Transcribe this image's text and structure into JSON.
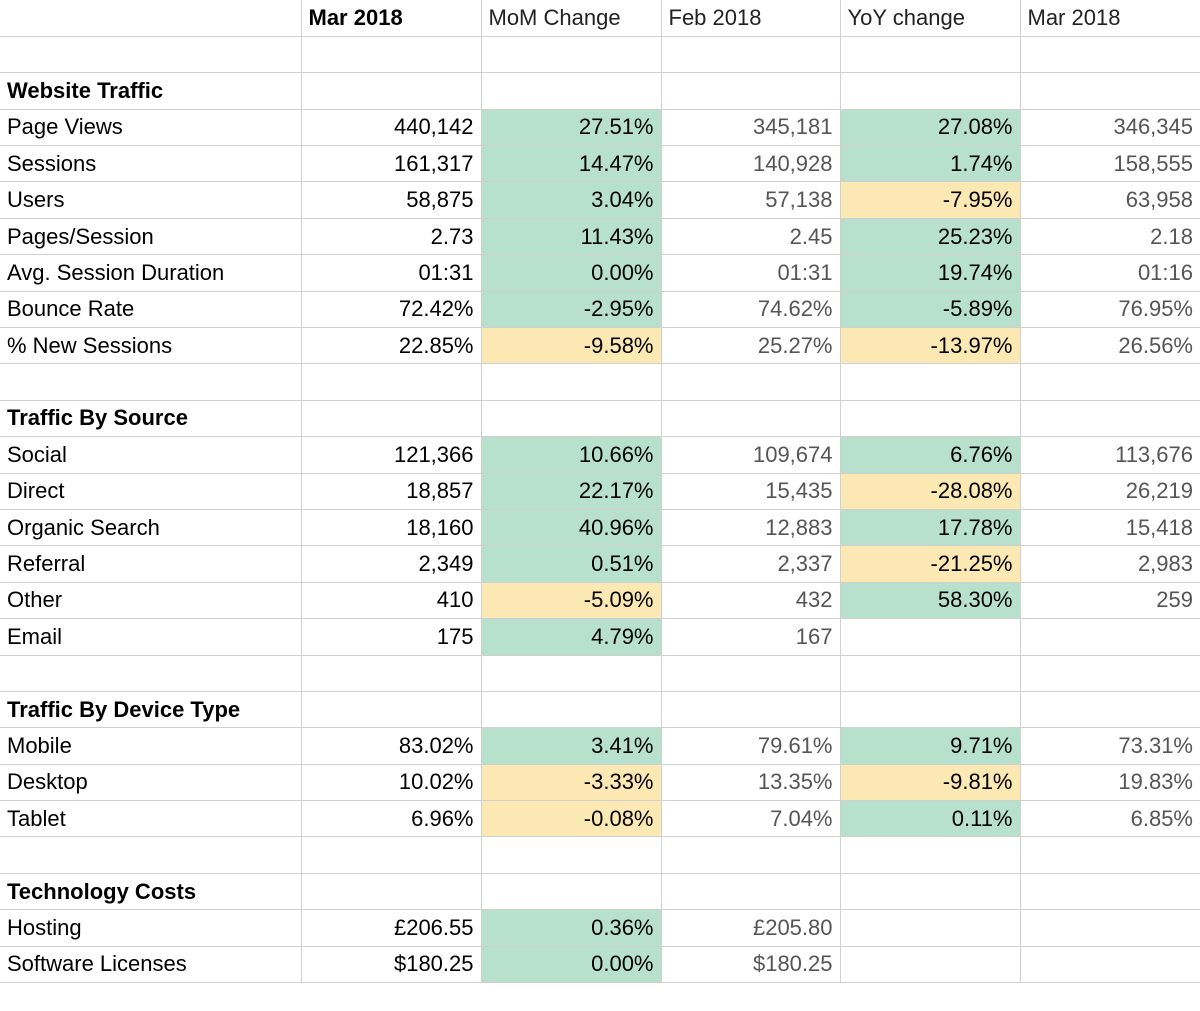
{
  "header": {
    "label": "",
    "columns": [
      "Mar 2018",
      "MoM Change",
      "Feb 2018",
      "YoY change",
      "Mar 2018"
    ]
  },
  "colors": {
    "positive_fill": "#b7e1cd",
    "negative_fill": "#fce8b2",
    "gridline": "#d0d0d0",
    "muted_text": "#555555"
  },
  "sections": [
    {
      "title": "Website Traffic",
      "rows": [
        {
          "label": "Page Views",
          "mar2018": "440,142",
          "mom": "27.51%",
          "mom_status": "pos",
          "feb2018": "345,181",
          "yoy": "27.08%",
          "yoy_status": "pos",
          "mar2017": "346,345"
        },
        {
          "label": "Sessions",
          "mar2018": "161,317",
          "mom": "14.47%",
          "mom_status": "pos",
          "feb2018": "140,928",
          "yoy": "1.74%",
          "yoy_status": "pos",
          "mar2017": "158,555"
        },
        {
          "label": "Users",
          "mar2018": "58,875",
          "mom": "3.04%",
          "mom_status": "pos",
          "feb2018": "57,138",
          "yoy": "-7.95%",
          "yoy_status": "neg",
          "mar2017": "63,958"
        },
        {
          "label": "Pages/Session",
          "mar2018": "2.73",
          "mom": "11.43%",
          "mom_status": "pos",
          "feb2018": "2.45",
          "yoy": "25.23%",
          "yoy_status": "pos",
          "mar2017": "2.18"
        },
        {
          "label": "Avg. Session Duration",
          "mar2018": "01:31",
          "mom": "0.00%",
          "mom_status": "pos",
          "feb2018": "01:31",
          "yoy": "19.74%",
          "yoy_status": "pos",
          "mar2017": "01:16"
        },
        {
          "label": "Bounce Rate",
          "mar2018": "72.42%",
          "mom": "-2.95%",
          "mom_status": "pos",
          "feb2018": "74.62%",
          "yoy": "-5.89%",
          "yoy_status": "pos",
          "mar2017": "76.95%"
        },
        {
          "label": "% New Sessions",
          "mar2018": "22.85%",
          "mom": "-9.58%",
          "mom_status": "neg",
          "feb2018": "25.27%",
          "yoy": "-13.97%",
          "yoy_status": "neg",
          "mar2017": "26.56%"
        }
      ]
    },
    {
      "title": "Traffic By Source",
      "rows": [
        {
          "label": "Social",
          "mar2018": "121,366",
          "mom": "10.66%",
          "mom_status": "pos",
          "feb2018": "109,674",
          "yoy": "6.76%",
          "yoy_status": "pos",
          "mar2017": "113,676"
        },
        {
          "label": "Direct",
          "mar2018": "18,857",
          "mom": "22.17%",
          "mom_status": "pos",
          "feb2018": "15,435",
          "yoy": "-28.08%",
          "yoy_status": "neg",
          "mar2017": "26,219"
        },
        {
          "label": "Organic Search",
          "mar2018": "18,160",
          "mom": "40.96%",
          "mom_status": "pos",
          "feb2018": "12,883",
          "yoy": "17.78%",
          "yoy_status": "pos",
          "mar2017": "15,418"
        },
        {
          "label": "Referral",
          "mar2018": "2,349",
          "mom": "0.51%",
          "mom_status": "pos",
          "feb2018": "2,337",
          "yoy": "-21.25%",
          "yoy_status": "neg",
          "mar2017": "2,983"
        },
        {
          "label": "Other",
          "mar2018": "410",
          "mom": "-5.09%",
          "mom_status": "neg",
          "feb2018": "432",
          "yoy": "58.30%",
          "yoy_status": "pos",
          "mar2017": "259"
        },
        {
          "label": "Email",
          "mar2018": "175",
          "mom": "4.79%",
          "mom_status": "pos",
          "feb2018": "167",
          "yoy": "",
          "yoy_status": "none",
          "mar2017": ""
        }
      ]
    },
    {
      "title": "Traffic By Device Type",
      "rows": [
        {
          "label": "Mobile",
          "mar2018": "83.02%",
          "mom": "3.41%",
          "mom_status": "pos",
          "feb2018": "79.61%",
          "yoy": "9.71%",
          "yoy_status": "pos",
          "mar2017": "73.31%"
        },
        {
          "label": "Desktop",
          "mar2018": "10.02%",
          "mom": "-3.33%",
          "mom_status": "neg",
          "feb2018": "13.35%",
          "yoy": "-9.81%",
          "yoy_status": "neg",
          "mar2017": "19.83%"
        },
        {
          "label": "Tablet",
          "mar2018": "6.96%",
          "mom": "-0.08%",
          "mom_status": "neg",
          "feb2018": "7.04%",
          "yoy": "0.11%",
          "yoy_status": "pos",
          "mar2017": "6.85%"
        }
      ]
    },
    {
      "title": "Technology Costs",
      "rows": [
        {
          "label": "Hosting",
          "mar2018": "£206.55",
          "mom": "0.36%",
          "mom_status": "pos",
          "feb2018": "£205.80",
          "yoy": "",
          "yoy_status": "none",
          "mar2017": ""
        },
        {
          "label": "Software Licenses",
          "mar2018": "$180.25",
          "mom": "0.00%",
          "mom_status": "pos",
          "feb2018": "$180.25",
          "yoy": "",
          "yoy_status": "none",
          "mar2017": ""
        }
      ]
    }
  ]
}
